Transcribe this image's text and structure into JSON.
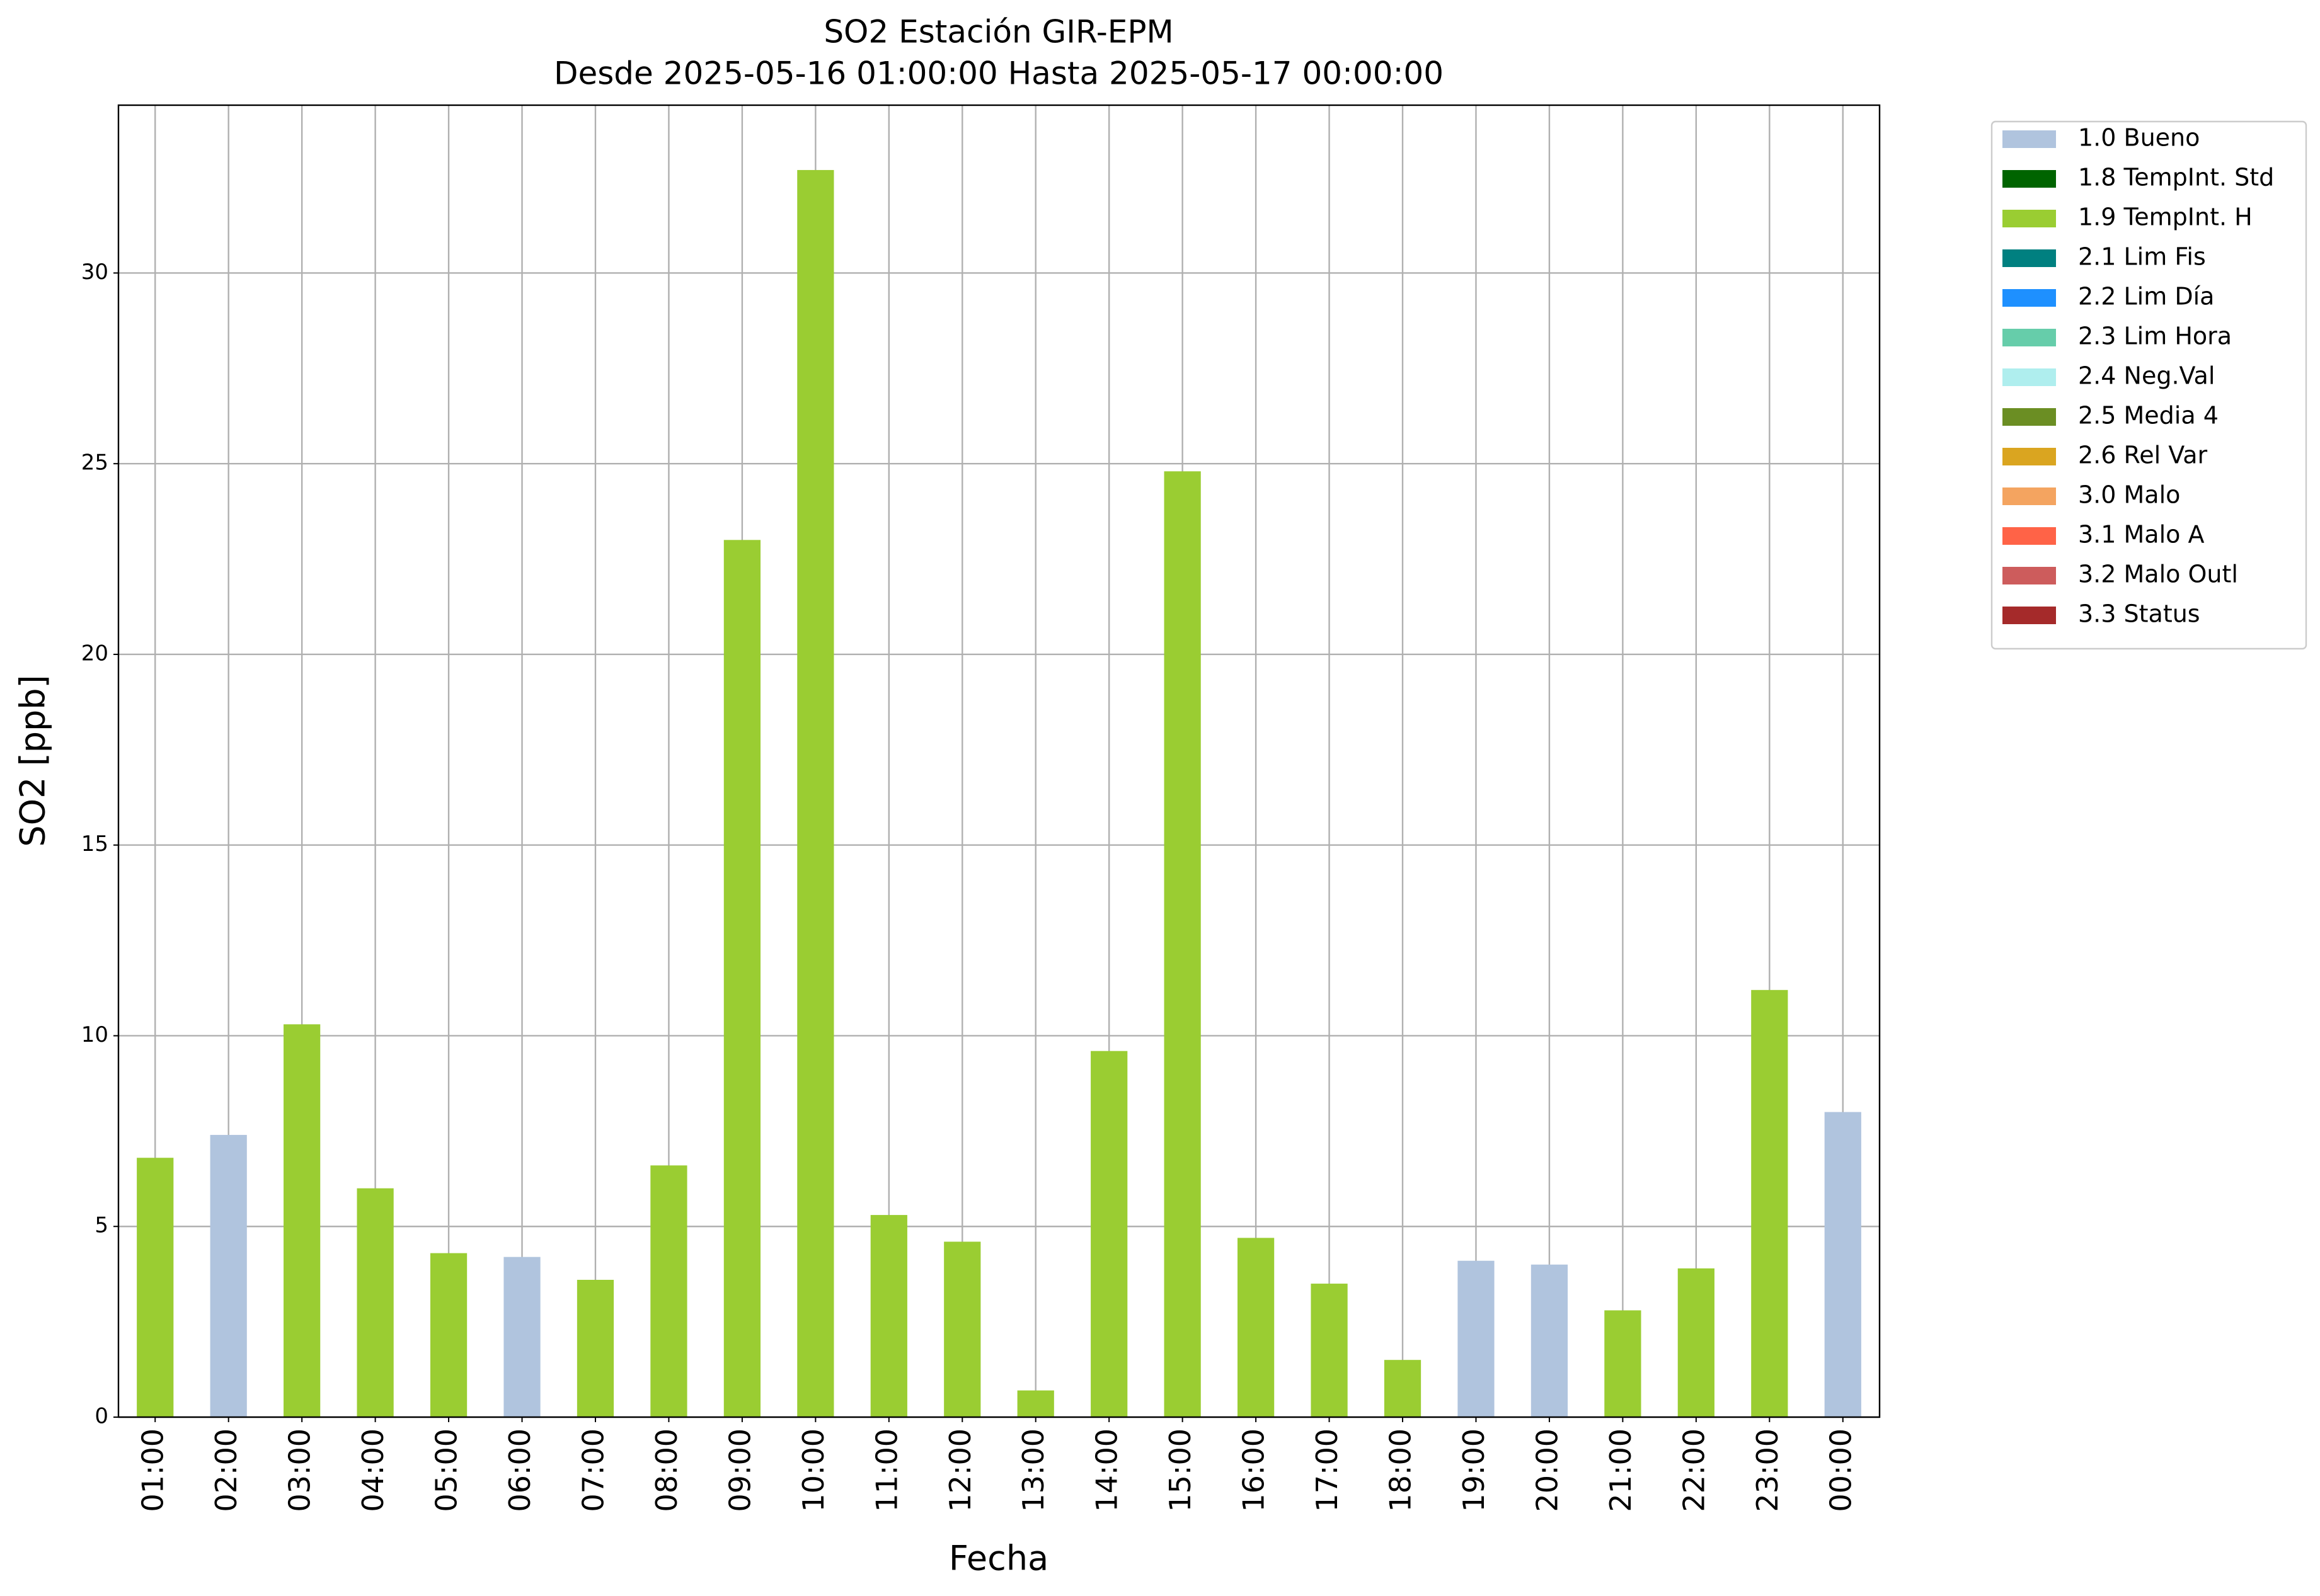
{
  "chart_data": {
    "type": "bar",
    "stacked": true,
    "title": "SO2 Estación GIR-EPM",
    "subtitle": "Desde 2025-05-16 01:00:00 Hasta 2025-05-17 00:00:00",
    "xlabel": "Fecha",
    "ylabel": "SO2 [ppb]",
    "categories": [
      "01:00",
      "02:00",
      "03:00",
      "04:00",
      "05:00",
      "06:00",
      "07:00",
      "08:00",
      "09:00",
      "10:00",
      "11:00",
      "12:00",
      "13:00",
      "14:00",
      "15:00",
      "16:00",
      "17:00",
      "18:00",
      "19:00",
      "20:00",
      "21:00",
      "22:00",
      "23:00",
      "00:00"
    ],
    "ylim": [
      0,
      34.4
    ],
    "yticks": [
      0,
      5,
      10,
      15,
      20,
      25,
      30
    ],
    "grid": true,
    "legend": "outside right",
    "series": [
      {
        "name": "1.0 Bueno",
        "color": "#b0c4de",
        "values": [
          null,
          7.4,
          null,
          null,
          null,
          4.2,
          null,
          null,
          null,
          null,
          null,
          null,
          null,
          null,
          null,
          null,
          null,
          null,
          4.1,
          4.0,
          null,
          null,
          null,
          8.0
        ]
      },
      {
        "name": "1.8 TempInt. Std",
        "color": "#006400",
        "values": [
          null,
          null,
          null,
          null,
          null,
          null,
          null,
          null,
          null,
          null,
          null,
          null,
          null,
          null,
          null,
          null,
          null,
          null,
          null,
          null,
          null,
          null,
          null,
          null
        ]
      },
      {
        "name": "1.9 TempInt. H",
        "color": "#9acd32",
        "values": [
          6.8,
          null,
          10.3,
          6.0,
          4.3,
          null,
          3.6,
          6.6,
          23.0,
          32.7,
          5.3,
          4.6,
          0.7,
          9.6,
          24.8,
          4.7,
          3.5,
          1.5,
          null,
          null,
          2.8,
          3.9,
          11.2,
          null
        ]
      },
      {
        "name": "2.1 Lim Fis",
        "color": "#008080",
        "values": [
          null,
          null,
          null,
          null,
          null,
          null,
          null,
          null,
          null,
          null,
          null,
          null,
          null,
          null,
          null,
          null,
          null,
          null,
          null,
          null,
          null,
          null,
          null,
          null
        ]
      },
      {
        "name": "2.2 Lim Día",
        "color": "#1e90ff",
        "values": [
          null,
          null,
          null,
          null,
          null,
          null,
          null,
          null,
          null,
          null,
          null,
          null,
          null,
          null,
          null,
          null,
          null,
          null,
          null,
          null,
          null,
          null,
          null,
          null
        ]
      },
      {
        "name": "2.3 Lim Hora",
        "color": "#66cdaa",
        "values": [
          null,
          null,
          null,
          null,
          null,
          null,
          null,
          null,
          null,
          null,
          null,
          null,
          null,
          null,
          null,
          null,
          null,
          null,
          null,
          null,
          null,
          null,
          null,
          null
        ]
      },
      {
        "name": "2.4 Neg.Val",
        "color": "#afeeee",
        "values": [
          null,
          null,
          null,
          null,
          null,
          null,
          null,
          null,
          null,
          null,
          null,
          null,
          null,
          null,
          null,
          null,
          null,
          null,
          null,
          null,
          null,
          null,
          null,
          null
        ]
      },
      {
        "name": "2.5 Media 4",
        "color": "#6b8e23",
        "values": [
          null,
          null,
          null,
          null,
          null,
          null,
          null,
          null,
          null,
          null,
          null,
          null,
          null,
          null,
          null,
          null,
          null,
          null,
          null,
          null,
          null,
          null,
          null,
          null
        ]
      },
      {
        "name": "2.6 Rel Var",
        "color": "#daa520",
        "values": [
          null,
          null,
          null,
          null,
          null,
          null,
          null,
          null,
          null,
          null,
          null,
          null,
          null,
          null,
          null,
          null,
          null,
          null,
          null,
          null,
          null,
          null,
          null,
          null
        ]
      },
      {
        "name": "3.0 Malo",
        "color": "#f4a460",
        "values": [
          null,
          null,
          null,
          null,
          null,
          null,
          null,
          null,
          null,
          null,
          null,
          null,
          null,
          null,
          null,
          null,
          null,
          null,
          null,
          null,
          null,
          null,
          null,
          null
        ]
      },
      {
        "name": "3.1 Malo A",
        "color": "#ff6347",
        "values": [
          null,
          null,
          null,
          null,
          null,
          null,
          null,
          null,
          null,
          null,
          null,
          null,
          null,
          null,
          null,
          null,
          null,
          null,
          null,
          null,
          null,
          null,
          null,
          null
        ]
      },
      {
        "name": "3.2 Malo Outl",
        "color": "#cd5c5c",
        "values": [
          null,
          null,
          null,
          null,
          null,
          null,
          null,
          null,
          null,
          null,
          null,
          null,
          null,
          null,
          null,
          null,
          null,
          null,
          null,
          null,
          null,
          null,
          null,
          null
        ]
      },
      {
        "name": "3.3 Status",
        "color": "#a52a2a",
        "values": [
          null,
          null,
          null,
          null,
          null,
          null,
          null,
          null,
          null,
          null,
          null,
          null,
          null,
          null,
          null,
          null,
          null,
          null,
          null,
          null,
          null,
          null,
          null,
          null
        ]
      }
    ]
  }
}
